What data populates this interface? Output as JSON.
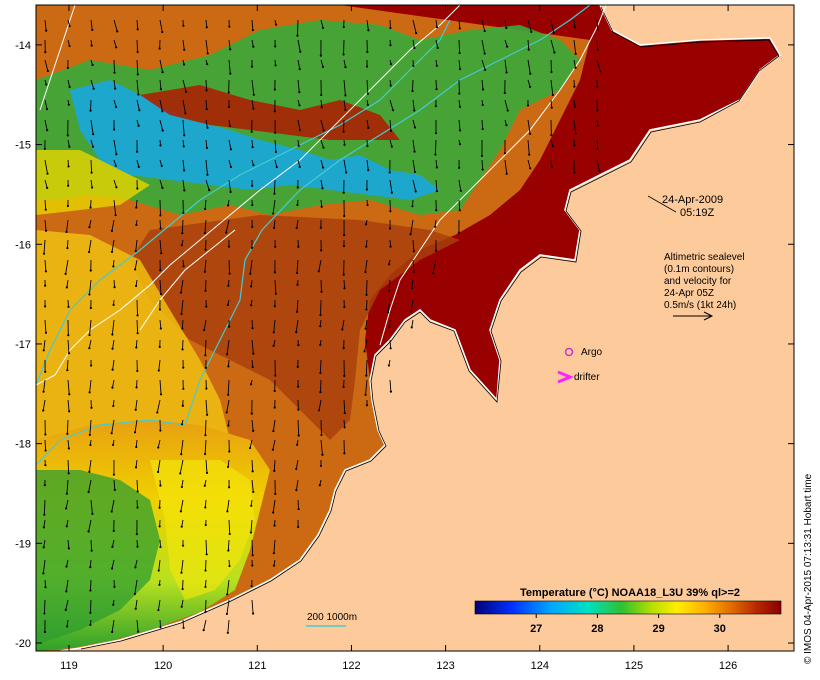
{
  "map": {
    "lon_ticks": [
      "119",
      "120",
      "121",
      "122",
      "123",
      "124",
      "125",
      "126"
    ],
    "lat_ticks": [
      "-14",
      "-15",
      "-16",
      "-17",
      "-18",
      "-19",
      "-20"
    ],
    "lon_range": [
      118.65,
      126.7
    ],
    "lat_range": [
      -20.08,
      -13.6
    ]
  },
  "annotations": {
    "date": "24-Apr-2009",
    "time": "05:19Z",
    "altimetry_lines": [
      "Altimetric sealevel",
      "(0.1m contours)",
      "and velocity for",
      "24-Apr 05Z",
      "0.5m/s (1kt 24h)"
    ],
    "argo_label": "Argo",
    "drifter_label": "drifter",
    "depth_label": "200  1000m"
  },
  "colorbar": {
    "title": "Temperature (°C) NOAA18_L3U 39% ql>=2",
    "tick_labels": [
      "27",
      "28",
      "29",
      "30"
    ],
    "tick_values": [
      27,
      28,
      29,
      30
    ],
    "range": [
      26.0,
      31.0
    ]
  },
  "credit": "© IMOS 04-Apr-2015 07:13:31 Hobart time",
  "colors": {
    "land": "#fdcb9b",
    "argo": "#cc33cc",
    "drifter": "#ff22ff",
    "contour": "#ffffff",
    "isobath": "#44ccd0",
    "deep_red": "#990000",
    "orange": "#cc6a14"
  }
}
